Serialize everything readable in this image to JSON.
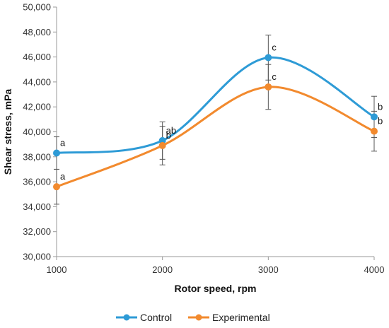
{
  "chart_data": {
    "type": "line",
    "xlabel": "Rotor speed, rpm",
    "ylabel": "Shear stress, mPa",
    "x": [
      1000,
      2000,
      3000,
      4000
    ],
    "x_tick_labels": [
      "1000",
      "2000",
      "3000",
      "4000"
    ],
    "xlim": [
      1000,
      4000
    ],
    "ylim": [
      30000,
      50000
    ],
    "y_tick_labels": [
      "30,000",
      "32,000",
      "34,000",
      "36,000",
      "38,000",
      "40,000",
      "42,000",
      "44,000",
      "46,000",
      "48,000",
      "50,000"
    ],
    "grid": false,
    "legend_position": "bottom",
    "smooth": true,
    "series": [
      {
        "name": "Control",
        "color": "#2E9BD6",
        "values": [
          38300,
          39300,
          45950,
          41200
        ],
        "error": [
          1300,
          1500,
          1800,
          1650
        ],
        "labels": [
          "a",
          "ab",
          "c",
          "b"
        ]
      },
      {
        "name": "Experimental",
        "color": "#F28A2E",
        "values": [
          35600,
          38900,
          43600,
          40050
        ],
        "error": [
          1400,
          1550,
          1800,
          1600
        ],
        "labels": [
          "a",
          "b",
          "c",
          "b"
        ]
      }
    ]
  }
}
